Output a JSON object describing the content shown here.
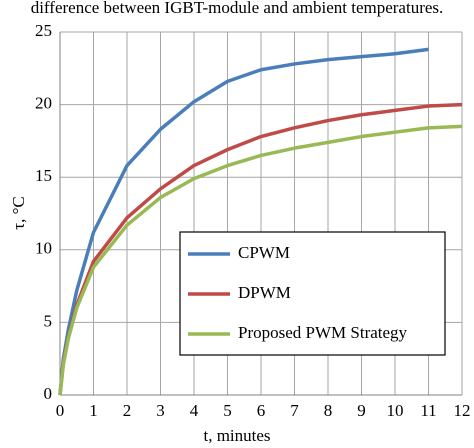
{
  "chart_data": {
    "type": "line",
    "title": "difference between IGBT-module and ambient temperatures.",
    "x_label": "t, minutes",
    "y_label": "τ, °C",
    "x": [
      0,
      0.1,
      0.25,
      0.5,
      1,
      2,
      3,
      4,
      5,
      6,
      7,
      8,
      9,
      10,
      11,
      12
    ],
    "series": [
      {
        "name": "CPWM",
        "color": "#4a7ebb",
        "values": [
          0,
          2.5,
          4.5,
          7.2,
          11.2,
          15.8,
          18.3,
          20.2,
          21.6,
          22.4,
          22.8,
          23.1,
          23.3,
          23.5,
          23.8,
          null
        ]
      },
      {
        "name": "DPWM",
        "color": "#be4b48",
        "values": [
          0,
          2.2,
          4.0,
          6.2,
          9.2,
          12.2,
          14.2,
          15.8,
          16.9,
          17.8,
          18.4,
          18.9,
          19.3,
          19.6,
          19.9,
          20.0
        ]
      },
      {
        "name": "Proposed PWM Strategy",
        "color": "#98b954",
        "values": [
          0,
          2.1,
          3.9,
          6.0,
          8.8,
          11.7,
          13.6,
          14.9,
          15.8,
          16.5,
          17.0,
          17.4,
          17.8,
          18.1,
          18.4,
          18.5
        ]
      }
    ],
    "xlim": [
      0,
      12
    ],
    "xticks": [
      0,
      1,
      2,
      3,
      4,
      5,
      6,
      7,
      8,
      9,
      10,
      11,
      12
    ],
    "ylim": [
      0,
      25
    ],
    "yticks": [
      0,
      5,
      10,
      15,
      20,
      25
    ],
    "grid": true
  }
}
